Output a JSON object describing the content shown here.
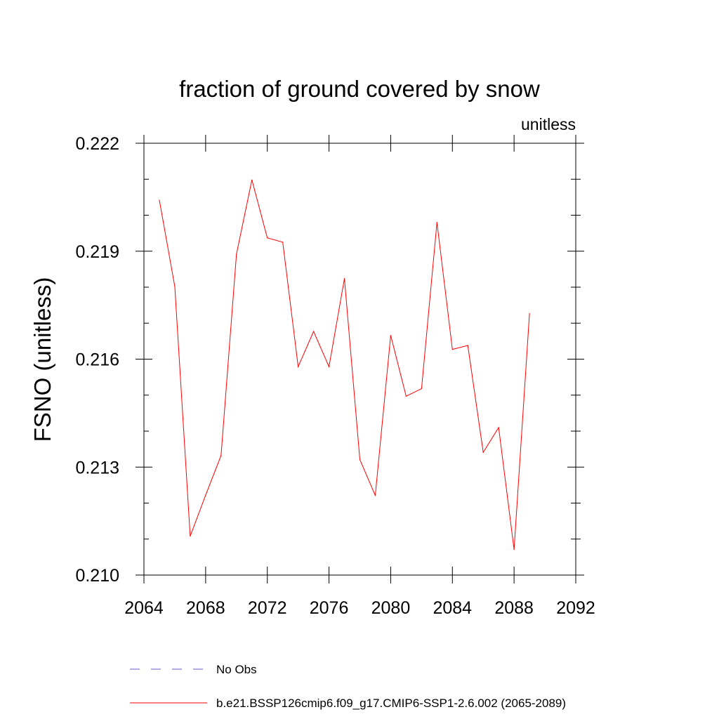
{
  "chart_data": {
    "type": "line",
    "title": "fraction of ground covered by snow",
    "units_label": "unitless",
    "ylabel": "FSNO  (unitless)",
    "xlabel": "",
    "xlim": [
      2064,
      2092
    ],
    "ylim": [
      0.21,
      0.222
    ],
    "x_ticks": [
      2064,
      2068,
      2072,
      2076,
      2080,
      2084,
      2088,
      2092
    ],
    "x_tick_labels": [
      "2064",
      "2068",
      "2072",
      "2076",
      "2080",
      "2084",
      "2088",
      "2092"
    ],
    "y_ticks": [
      0.21,
      0.213,
      0.216,
      0.219,
      0.222
    ],
    "y_tick_labels": [
      "0.210",
      "0.213",
      "0.216",
      "0.219",
      "0.222"
    ],
    "grid": false,
    "series": [
      {
        "name": "b.e21.BSSP126cmip6.f09_g17.CMIP6-SSP1-2.6.002 (2065-2089)",
        "color": "#ff0000",
        "style": "solid",
        "x": [
          2065,
          2066,
          2067,
          2068,
          2069,
          2070,
          2071,
          2072,
          2073,
          2074,
          2075,
          2076,
          2077,
          2078,
          2079,
          2080,
          2081,
          2082,
          2083,
          2084,
          2085,
          2086,
          2087,
          2088,
          2089
        ],
        "y": [
          0.22042,
          0.21802,
          0.21108,
          0.21222,
          0.21332,
          0.21892,
          0.22098,
          0.21937,
          0.21925,
          0.21579,
          0.21677,
          0.21579,
          0.21824,
          0.21321,
          0.21221,
          0.21666,
          0.21497,
          0.21518,
          0.2198,
          0.21627,
          0.21638,
          0.21341,
          0.2141,
          0.21071,
          0.21727
        ]
      }
    ],
    "legend": [
      {
        "label": "No Obs",
        "color": "#6a5acd",
        "style": "dashed"
      },
      {
        "label": "b.e21.BSSP126cmip6.f09_g17.CMIP6-SSP1-2.6.002 (2065-2089)",
        "color": "#ff0000",
        "style": "solid"
      }
    ],
    "legend_position": "bottom-center"
  }
}
